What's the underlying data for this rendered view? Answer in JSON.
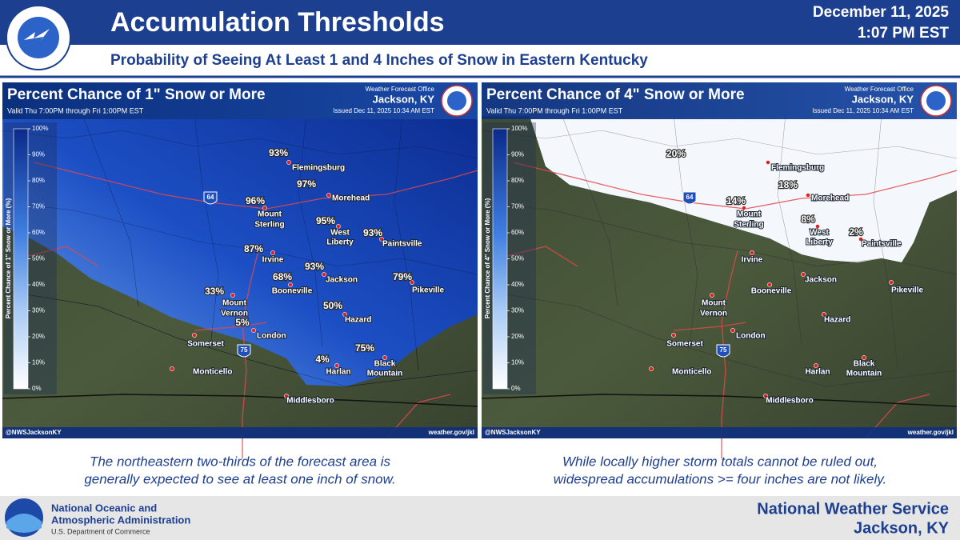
{
  "header": {
    "title": "Accumulation Thresholds",
    "subtitle": "Probability of Seeing At Least 1 and 4 Inches of Snow in Eastern Kentucky",
    "date": "December 11, 2025",
    "time": "1:07 PM EST"
  },
  "panels": [
    {
      "title": "Percent Chance of 1\" Snow or More",
      "valid": "Valid Thu 7:00PM through Fri 1:00PM EST",
      "office_label": "Weather Forecast Office",
      "office": "Jackson, KY",
      "issued": "Issued Dec 11, 2025 10:34 AM EST",
      "colorbar_label": "Percent Chance of 1\" Snow or More (%)",
      "colorbar_ticks": [
        "100%",
        "90%",
        "80%",
        "70%",
        "60%",
        "50%",
        "40%",
        "30%",
        "20%",
        "10%",
        "0%"
      ],
      "cities": [
        "Flemingsburg",
        "Morehead",
        "Mount",
        "Sterling",
        "West",
        "Liberty",
        "Paintsville",
        "Irvine",
        "Jackson",
        "Booneville",
        "Pikeville",
        "Mount",
        "Vernon",
        "Hazard",
        "London",
        "Somerset",
        "Harlan",
        "Black",
        "Mountain",
        "Monticello",
        "Middlesboro"
      ],
      "percents": [
        "93%",
        "97%",
        "96%",
        "95%",
        "93%",
        "87%",
        "93%",
        "68%",
        "79%",
        "33%",
        "50%",
        "5%",
        "4%",
        "75%"
      ],
      "highways": [
        "64",
        "75"
      ],
      "handle": "@NWSJacksonKY",
      "website": "weather.gov/jkl",
      "caption": [
        "The northeastern two-thirds of the forecast area is",
        "generally expected to see at least one inch of snow."
      ]
    },
    {
      "title": "Percent Chance of 4\" Snow or More",
      "valid": "Valid Thu 7:00PM through Fri 1:00PM EST",
      "office_label": "Weather Forecast Office",
      "office": "Jackson, KY",
      "issued": "Issued Dec 11, 2025 10:34 AM EST",
      "colorbar_label": "Percent Chance of 4\" Snow or More (%)",
      "colorbar_ticks": [
        "100%",
        "90%",
        "80%",
        "70%",
        "60%",
        "50%",
        "40%",
        "30%",
        "20%",
        "10%",
        "0%"
      ],
      "cities": [
        "Flemingsburg",
        "Morehead",
        "Mount",
        "Sterling",
        "West",
        "Liberty",
        "Paintsville",
        "Irvine",
        "Jackson",
        "Booneville",
        "Pikeville",
        "Mount",
        "Vernon",
        "Hazard",
        "London",
        "Somerset",
        "Harlan",
        "Black",
        "Mountain",
        "Monticello",
        "Middlesboro"
      ],
      "percents": [
        "20%",
        "18%",
        "14%",
        "8%",
        "2%"
      ],
      "highways": [
        "64",
        "75"
      ],
      "handle": "@NWSJacksonKY",
      "website": "weather.gov/jkl",
      "caption": [
        "While locally higher storm totals cannot be ruled out,",
        "widespread accumulations >= four inches are not likely."
      ]
    }
  ],
  "footer": {
    "agency": [
      "National Oceanic and",
      "Atmospheric Administration"
    ],
    "department": "U.S. Department of Commerce",
    "office": [
      "National Weather Service",
      "Jackson, KY"
    ]
  }
}
